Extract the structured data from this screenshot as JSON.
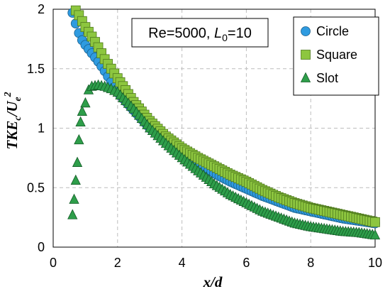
{
  "chart_data": {
    "type": "scatter",
    "annotation": {
      "prefix": "Re=5000, ",
      "var": "L",
      "sub": "0",
      "suffix": "=10"
    },
    "xlabel": "x/d",
    "ylabel": {
      "base": "TKE",
      "sub1": "c",
      "mid": "/U",
      "sub2": "e",
      "sup": "2"
    },
    "xlim": [
      0,
      10
    ],
    "ylim": [
      0,
      2
    ],
    "x_ticks": [
      0,
      2,
      4,
      6,
      8,
      10
    ],
    "y_ticks": [
      0,
      0.5,
      1,
      1.5,
      2
    ],
    "x_tick_labels": [
      "0",
      "2",
      "4",
      "6",
      "8",
      "10"
    ],
    "y_tick_labels": [
      "0",
      "0.5",
      "1",
      "1.5",
      "2"
    ],
    "grid": true,
    "legend_position": "top-right",
    "series": [
      {
        "name": "Circle",
        "marker": "circle",
        "color": "#2f9be0",
        "stroke": "#1b5f8c",
        "x": [
          0.6,
          0.7,
          0.8,
          0.9,
          1.0,
          1.2,
          1.4,
          1.6,
          1.8,
          2.0,
          2.5,
          3.0,
          3.5,
          4.0,
          4.5,
          5.0,
          5.5,
          6.0,
          6.5,
          7.0,
          7.5,
          8.0,
          8.5,
          9.0,
          9.5,
          10.0
        ],
        "y": [
          1.97,
          1.88,
          1.8,
          1.74,
          1.7,
          1.63,
          1.56,
          1.48,
          1.39,
          1.3,
          1.15,
          1.0,
          0.89,
          0.8,
          0.71,
          0.62,
          0.55,
          0.49,
          0.43,
          0.38,
          0.33,
          0.3,
          0.27,
          0.24,
          0.22,
          0.2
        ]
      },
      {
        "name": "Square",
        "marker": "square",
        "color": "#8dc63f",
        "stroke": "#4f7a1e",
        "x": [
          0.7,
          0.8,
          0.9,
          1.0,
          1.2,
          1.4,
          1.6,
          1.8,
          2.0,
          2.5,
          3.0,
          3.5,
          4.0,
          4.5,
          5.0,
          5.5,
          6.0,
          6.5,
          7.0,
          7.5,
          8.0,
          8.5,
          9.0,
          9.5,
          10.0
        ],
        "y": [
          1.99,
          1.95,
          1.9,
          1.85,
          1.77,
          1.68,
          1.58,
          1.5,
          1.42,
          1.22,
          1.06,
          0.93,
          0.83,
          0.75,
          0.68,
          0.61,
          0.55,
          0.48,
          0.42,
          0.37,
          0.33,
          0.3,
          0.27,
          0.24,
          0.21
        ]
      },
      {
        "name": "Slot",
        "marker": "triangle",
        "color": "#2e9e4a",
        "stroke": "#145c28",
        "x": [
          0.6,
          0.65,
          0.7,
          0.75,
          0.8,
          0.85,
          0.9,
          1.0,
          1.1,
          1.2,
          1.4,
          1.6,
          1.8,
          2.0,
          2.5,
          3.0,
          3.5,
          4.0,
          4.5,
          5.0,
          5.5,
          6.0,
          6.5,
          7.0,
          7.5,
          8.0,
          8.5,
          9.0,
          9.5,
          10.0
        ],
        "y": [
          0.27,
          0.4,
          0.56,
          0.71,
          0.9,
          1.05,
          1.14,
          1.21,
          1.32,
          1.35,
          1.36,
          1.35,
          1.33,
          1.3,
          1.16,
          1.0,
          0.87,
          0.75,
          0.64,
          0.53,
          0.44,
          0.37,
          0.3,
          0.25,
          0.2,
          0.17,
          0.15,
          0.13,
          0.12,
          0.1
        ]
      }
    ]
  }
}
